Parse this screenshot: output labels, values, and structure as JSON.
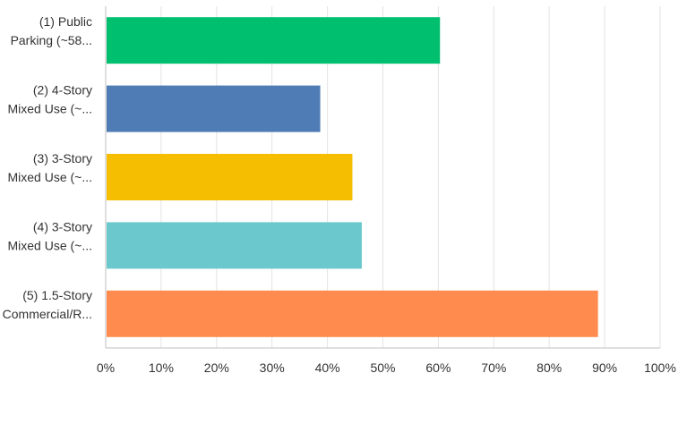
{
  "chart_data": {
    "type": "bar",
    "orientation": "horizontal",
    "categories": [
      [
        "(1) Public",
        "Parking (~58..."
      ],
      [
        "(2) 4-Story",
        "Mixed Use (~..."
      ],
      [
        "(3) 3-Story",
        "Mixed Use (~..."
      ],
      [
        "(4) 3-Story",
        "Mixed Use (~..."
      ],
      [
        "(5) 1.5-Story",
        "Commercial/R..."
      ]
    ],
    "values": [
      60.3,
      38.7,
      44.5,
      46.2,
      88.8
    ],
    "colors": [
      "#00bf6f",
      "#507cb6",
      "#f6be00",
      "#6bc8cd",
      "#ff8b4f"
    ],
    "xlim": [
      0,
      100
    ],
    "xticks": [
      0,
      10,
      20,
      30,
      40,
      50,
      60,
      70,
      80,
      90,
      100
    ],
    "xtick_labels": [
      "0%",
      "10%",
      "20%",
      "30%",
      "40%",
      "50%",
      "60%",
      "70%",
      "80%",
      "90%",
      "100%"
    ],
    "grid": true,
    "title": "",
    "xlabel": "",
    "ylabel": ""
  }
}
